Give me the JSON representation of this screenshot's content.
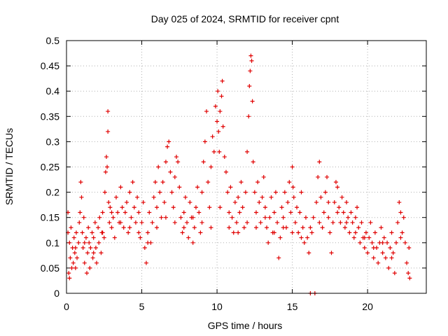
{
  "chart_data": {
    "type": "scatter",
    "title": "Day 025 of 2024, SRMTID for receiver cpnt",
    "xlabel": "GPS time / hours",
    "ylabel": "SRMTID / TECUs",
    "xlim": [
      0,
      23.9
    ],
    "ylim": [
      0,
      0.5
    ],
    "xticks": [
      0,
      5,
      10,
      15,
      20
    ],
    "yticks": [
      0,
      0.05,
      0.1,
      0.15,
      0.2,
      0.25,
      0.3,
      0.35,
      0.4,
      0.45,
      0.5
    ],
    "xtick_labels": [
      "0",
      "5",
      "10",
      "15",
      "20"
    ],
    "ytick_labels": [
      "0",
      "0.05",
      "0.1",
      "0.15",
      "0.2",
      "0.25",
      "0.3",
      "0.35",
      "0.4",
      "0.45",
      "0.5"
    ],
    "grid": true,
    "marker": "+",
    "color": "#e00000",
    "series": [
      {
        "points": [
          [
            0.1,
            0.16
          ],
          [
            0.1,
            0.12
          ],
          [
            0.15,
            0.04
          ],
          [
            0.2,
            0.03
          ],
          [
            0.2,
            0.1
          ],
          [
            0.25,
            0.07
          ],
          [
            0.3,
            0.13
          ],
          [
            0.35,
            0.05
          ],
          [
            0.4,
            0.09
          ],
          [
            0.45,
            0.06
          ],
          [
            0.5,
            0.11
          ],
          [
            0.55,
            0.08
          ],
          [
            0.6,
            0.05
          ],
          [
            0.65,
            0.12
          ],
          [
            0.7,
            0.07
          ],
          [
            0.8,
            0.1
          ],
          [
            0.85,
            0.14
          ],
          [
            0.9,
            0.16
          ],
          [
            0.95,
            0.22
          ],
          [
            1.0,
            0.19
          ],
          [
            1.05,
            0.12
          ],
          [
            1.1,
            0.09
          ],
          [
            1.15,
            0.15
          ],
          [
            1.2,
            0.06
          ],
          [
            1.3,
            0.11
          ],
          [
            1.35,
            0.04
          ],
          [
            1.4,
            0.08
          ],
          [
            1.45,
            0.13
          ],
          [
            1.5,
            0.1
          ],
          [
            1.55,
            0.05
          ],
          [
            1.6,
            0.09
          ],
          [
            1.7,
            0.12
          ],
          [
            1.75,
            0.07
          ],
          [
            1.8,
            0.11
          ],
          [
            1.9,
            0.14
          ],
          [
            1.95,
            0.09
          ],
          [
            2.0,
            0.06
          ],
          [
            2.1,
            0.13
          ],
          [
            2.15,
            0.1
          ],
          [
            2.2,
            0.15
          ],
          [
            2.3,
            0.08
          ],
          [
            2.35,
            0.12
          ],
          [
            2.4,
            0.16
          ],
          [
            2.5,
            0.11
          ],
          [
            2.55,
            0.2
          ],
          [
            2.6,
            0.24
          ],
          [
            2.65,
            0.27
          ],
          [
            2.7,
            0.25
          ],
          [
            2.75,
            0.32
          ],
          [
            2.75,
            0.36
          ],
          [
            2.8,
            0.18
          ],
          [
            2.85,
            0.14
          ],
          [
            2.9,
            0.17
          ],
          [
            3.0,
            0.13
          ],
          [
            3.1,
            0.15
          ],
          [
            3.2,
            0.11
          ],
          [
            3.3,
            0.19
          ],
          [
            3.4,
            0.16
          ],
          [
            3.5,
            0.14
          ],
          [
            3.6,
            0.21
          ],
          [
            3.7,
            0.17
          ],
          [
            3.8,
            0.13
          ],
          [
            3.9,
            0.16
          ],
          [
            4.0,
            0.18
          ],
          [
            4.1,
            0.12
          ],
          [
            4.2,
            0.2
          ],
          [
            4.3,
            0.15
          ],
          [
            4.4,
            0.22
          ],
          [
            4.5,
            0.17
          ],
          [
            4.6,
            0.14
          ],
          [
            4.7,
            0.19
          ],
          [
            4.8,
            0.16
          ],
          [
            4.9,
            0.11
          ],
          [
            5.0,
            0.14
          ],
          [
            5.1,
            0.18
          ],
          [
            5.2,
            0.09
          ],
          [
            5.3,
            0.06
          ],
          [
            5.4,
            0.12
          ],
          [
            5.5,
            0.16
          ],
          [
            5.6,
            0.1
          ],
          [
            5.7,
            0.14
          ],
          [
            5.8,
            0.19
          ],
          [
            5.9,
            0.22
          ],
          [
            6.0,
            0.17
          ],
          [
            6.1,
            0.25
          ],
          [
            6.2,
            0.2
          ],
          [
            6.3,
            0.15
          ],
          [
            6.4,
            0.22
          ],
          [
            6.5,
            0.18
          ],
          [
            6.6,
            0.26
          ],
          [
            6.7,
            0.29
          ],
          [
            6.8,
            0.3
          ],
          [
            6.9,
            0.24
          ],
          [
            7.0,
            0.2
          ],
          [
            7.1,
            0.17
          ],
          [
            7.2,
            0.23
          ],
          [
            7.3,
            0.27
          ],
          [
            7.4,
            0.26
          ],
          [
            7.5,
            0.21
          ],
          [
            7.6,
            0.15
          ],
          [
            7.7,
            0.12
          ],
          [
            7.8,
            0.16
          ],
          [
            7.9,
            0.19
          ],
          [
            8.0,
            0.14
          ],
          [
            8.1,
            0.11
          ],
          [
            8.2,
            0.18
          ],
          [
            8.3,
            0.15
          ],
          [
            8.4,
            0.1
          ],
          [
            8.5,
            0.13
          ],
          [
            8.6,
            0.17
          ],
          [
            8.7,
            0.21
          ],
          [
            8.8,
            0.16
          ],
          [
            8.9,
            0.12
          ],
          [
            9.0,
            0.2
          ],
          [
            9.1,
            0.26
          ],
          [
            9.2,
            0.3
          ],
          [
            9.3,
            0.36
          ],
          [
            9.4,
            0.22
          ],
          [
            9.5,
            0.17
          ],
          [
            9.6,
            0.25
          ],
          [
            9.7,
            0.31
          ],
          [
            9.8,
            0.28
          ],
          [
            9.9,
            0.37
          ],
          [
            10.0,
            0.34
          ],
          [
            10.05,
            0.4
          ],
          [
            10.1,
            0.32
          ],
          [
            10.15,
            0.28
          ],
          [
            10.2,
            0.36
          ],
          [
            10.3,
            0.39
          ],
          [
            10.35,
            0.42
          ],
          [
            10.4,
            0.33
          ],
          [
            10.5,
            0.27
          ],
          [
            10.6,
            0.24
          ],
          [
            10.7,
            0.2
          ],
          [
            10.8,
            0.16
          ],
          [
            10.9,
            0.21
          ],
          [
            11.0,
            0.15
          ],
          [
            11.1,
            0.12
          ],
          [
            11.2,
            0.18
          ],
          [
            11.3,
            0.14
          ],
          [
            11.4,
            0.19
          ],
          [
            11.5,
            0.16
          ],
          [
            11.6,
            0.22
          ],
          [
            11.7,
            0.17
          ],
          [
            11.8,
            0.13
          ],
          [
            11.9,
            0.2
          ],
          [
            12.0,
            0.28
          ],
          [
            12.1,
            0.35
          ],
          [
            12.15,
            0.41
          ],
          [
            12.2,
            0.44
          ],
          [
            12.25,
            0.47
          ],
          [
            12.3,
            0.46
          ],
          [
            12.35,
            0.38
          ],
          [
            12.4,
            0.26
          ],
          [
            12.5,
            0.2
          ],
          [
            12.6,
            0.16
          ],
          [
            12.7,
            0.22
          ],
          [
            12.8,
            0.18
          ],
          [
            12.9,
            0.14
          ],
          [
            13.0,
            0.19
          ],
          [
            13.1,
            0.23
          ],
          [
            13.2,
            0.17
          ],
          [
            13.3,
            0.13
          ],
          [
            13.4,
            0.1
          ],
          [
            13.5,
            0.15
          ],
          [
            13.6,
            0.19
          ],
          [
            13.7,
            0.12
          ],
          [
            13.8,
            0.16
          ],
          [
            13.9,
            0.2
          ],
          [
            14.0,
            0.14
          ],
          [
            14.1,
            0.07
          ],
          [
            14.2,
            0.11
          ],
          [
            14.3,
            0.17
          ],
          [
            14.4,
            0.15
          ],
          [
            14.5,
            0.2
          ],
          [
            14.6,
            0.13
          ],
          [
            14.7,
            0.18
          ],
          [
            14.8,
            0.22
          ],
          [
            14.9,
            0.16
          ],
          [
            15.0,
            0.25
          ],
          [
            15.05,
            0.21
          ],
          [
            15.1,
            0.19
          ],
          [
            15.2,
            0.14
          ],
          [
            15.3,
            0.17
          ],
          [
            15.4,
            0.12
          ],
          [
            15.5,
            0.16
          ],
          [
            15.6,
            0.2
          ],
          [
            15.7,
            0.13
          ],
          [
            15.8,
            0.1
          ],
          [
            15.9,
            0.15
          ],
          [
            16.0,
            0.11
          ],
          [
            16.1,
            0.08
          ],
          [
            16.2,
            0.0
          ],
          [
            16.5,
            0.0
          ],
          [
            16.3,
            0.12
          ],
          [
            16.4,
            0.15
          ],
          [
            16.6,
            0.18
          ],
          [
            16.7,
            0.23
          ],
          [
            16.8,
            0.26
          ],
          [
            16.9,
            0.19
          ],
          [
            17.0,
            0.13
          ],
          [
            17.1,
            0.16
          ],
          [
            17.2,
            0.2
          ],
          [
            17.3,
            0.23
          ],
          [
            17.4,
            0.18
          ],
          [
            17.5,
            0.12
          ],
          [
            17.6,
            0.08
          ],
          [
            17.7,
            0.14
          ],
          [
            17.8,
            0.18
          ],
          [
            17.9,
            0.22
          ],
          [
            18.0,
            0.21
          ],
          [
            18.1,
            0.17
          ],
          [
            18.2,
            0.14
          ],
          [
            18.3,
            0.19
          ],
          [
            18.4,
            0.16
          ],
          [
            18.5,
            0.13
          ],
          [
            18.6,
            0.18
          ],
          [
            18.7,
            0.15
          ],
          [
            18.8,
            0.12
          ],
          [
            18.9,
            0.16
          ],
          [
            19.0,
            0.14
          ],
          [
            19.1,
            0.11
          ],
          [
            19.2,
            0.15
          ],
          [
            19.3,
            0.17
          ],
          [
            19.4,
            0.13
          ],
          [
            19.5,
            0.1
          ],
          [
            19.6,
            0.14
          ],
          [
            19.7,
            0.11
          ],
          [
            19.8,
            0.09
          ],
          [
            19.9,
            0.12
          ],
          [
            20.0,
            0.08
          ],
          [
            20.1,
            0.11
          ],
          [
            20.2,
            0.14
          ],
          [
            20.3,
            0.1
          ],
          [
            20.4,
            0.07
          ],
          [
            20.5,
            0.12
          ],
          [
            20.6,
            0.09
          ],
          [
            20.7,
            0.06
          ],
          [
            20.8,
            0.1
          ],
          [
            20.9,
            0.13
          ],
          [
            21.0,
            0.08
          ],
          [
            21.1,
            0.11
          ],
          [
            21.2,
            0.07
          ],
          [
            21.3,
            0.1
          ],
          [
            21.4,
            0.05
          ],
          [
            21.5,
            0.09
          ],
          [
            21.6,
            0.12
          ],
          [
            21.7,
            0.08
          ],
          [
            21.8,
            0.04
          ],
          [
            21.9,
            0.1
          ],
          [
            22.0,
            0.14
          ],
          [
            22.1,
            0.18
          ],
          [
            22.2,
            0.16
          ],
          [
            22.3,
            0.12
          ],
          [
            22.4,
            0.15
          ],
          [
            22.5,
            0.1
          ],
          [
            22.6,
            0.06
          ],
          [
            22.7,
            0.04
          ],
          [
            22.75,
            0.09
          ],
          [
            22.8,
            0.03
          ],
          [
            0.6,
            0.09
          ],
          [
            1.2,
            0.1
          ],
          [
            1.8,
            0.08
          ],
          [
            2.4,
            0.12
          ],
          [
            3.0,
            0.16
          ],
          [
            3.6,
            0.14
          ],
          [
            4.2,
            0.13
          ],
          [
            4.8,
            0.12
          ],
          [
            5.4,
            0.1
          ],
          [
            6.0,
            0.13
          ],
          [
            6.6,
            0.15
          ],
          [
            7.2,
            0.14
          ],
          [
            7.8,
            0.13
          ],
          [
            8.4,
            0.15
          ],
          [
            9.0,
            0.14
          ],
          [
            9.6,
            0.13
          ],
          [
            10.2,
            0.17
          ],
          [
            10.8,
            0.13
          ],
          [
            11.4,
            0.12
          ],
          [
            12.0,
            0.14
          ],
          [
            12.6,
            0.13
          ],
          [
            13.2,
            0.15
          ],
          [
            13.8,
            0.12
          ],
          [
            14.4,
            0.13
          ],
          [
            15.0,
            0.12
          ],
          [
            15.6,
            0.11
          ],
          [
            16.2,
            0.13
          ],
          [
            16.8,
            0.14
          ],
          [
            17.4,
            0.15
          ],
          [
            18.0,
            0.16
          ],
          [
            18.6,
            0.14
          ],
          [
            19.2,
            0.12
          ],
          [
            19.8,
            0.11
          ],
          [
            20.4,
            0.09
          ],
          [
            21.0,
            0.1
          ],
          [
            21.6,
            0.07
          ],
          [
            22.2,
            0.11
          ]
        ]
      }
    ]
  }
}
